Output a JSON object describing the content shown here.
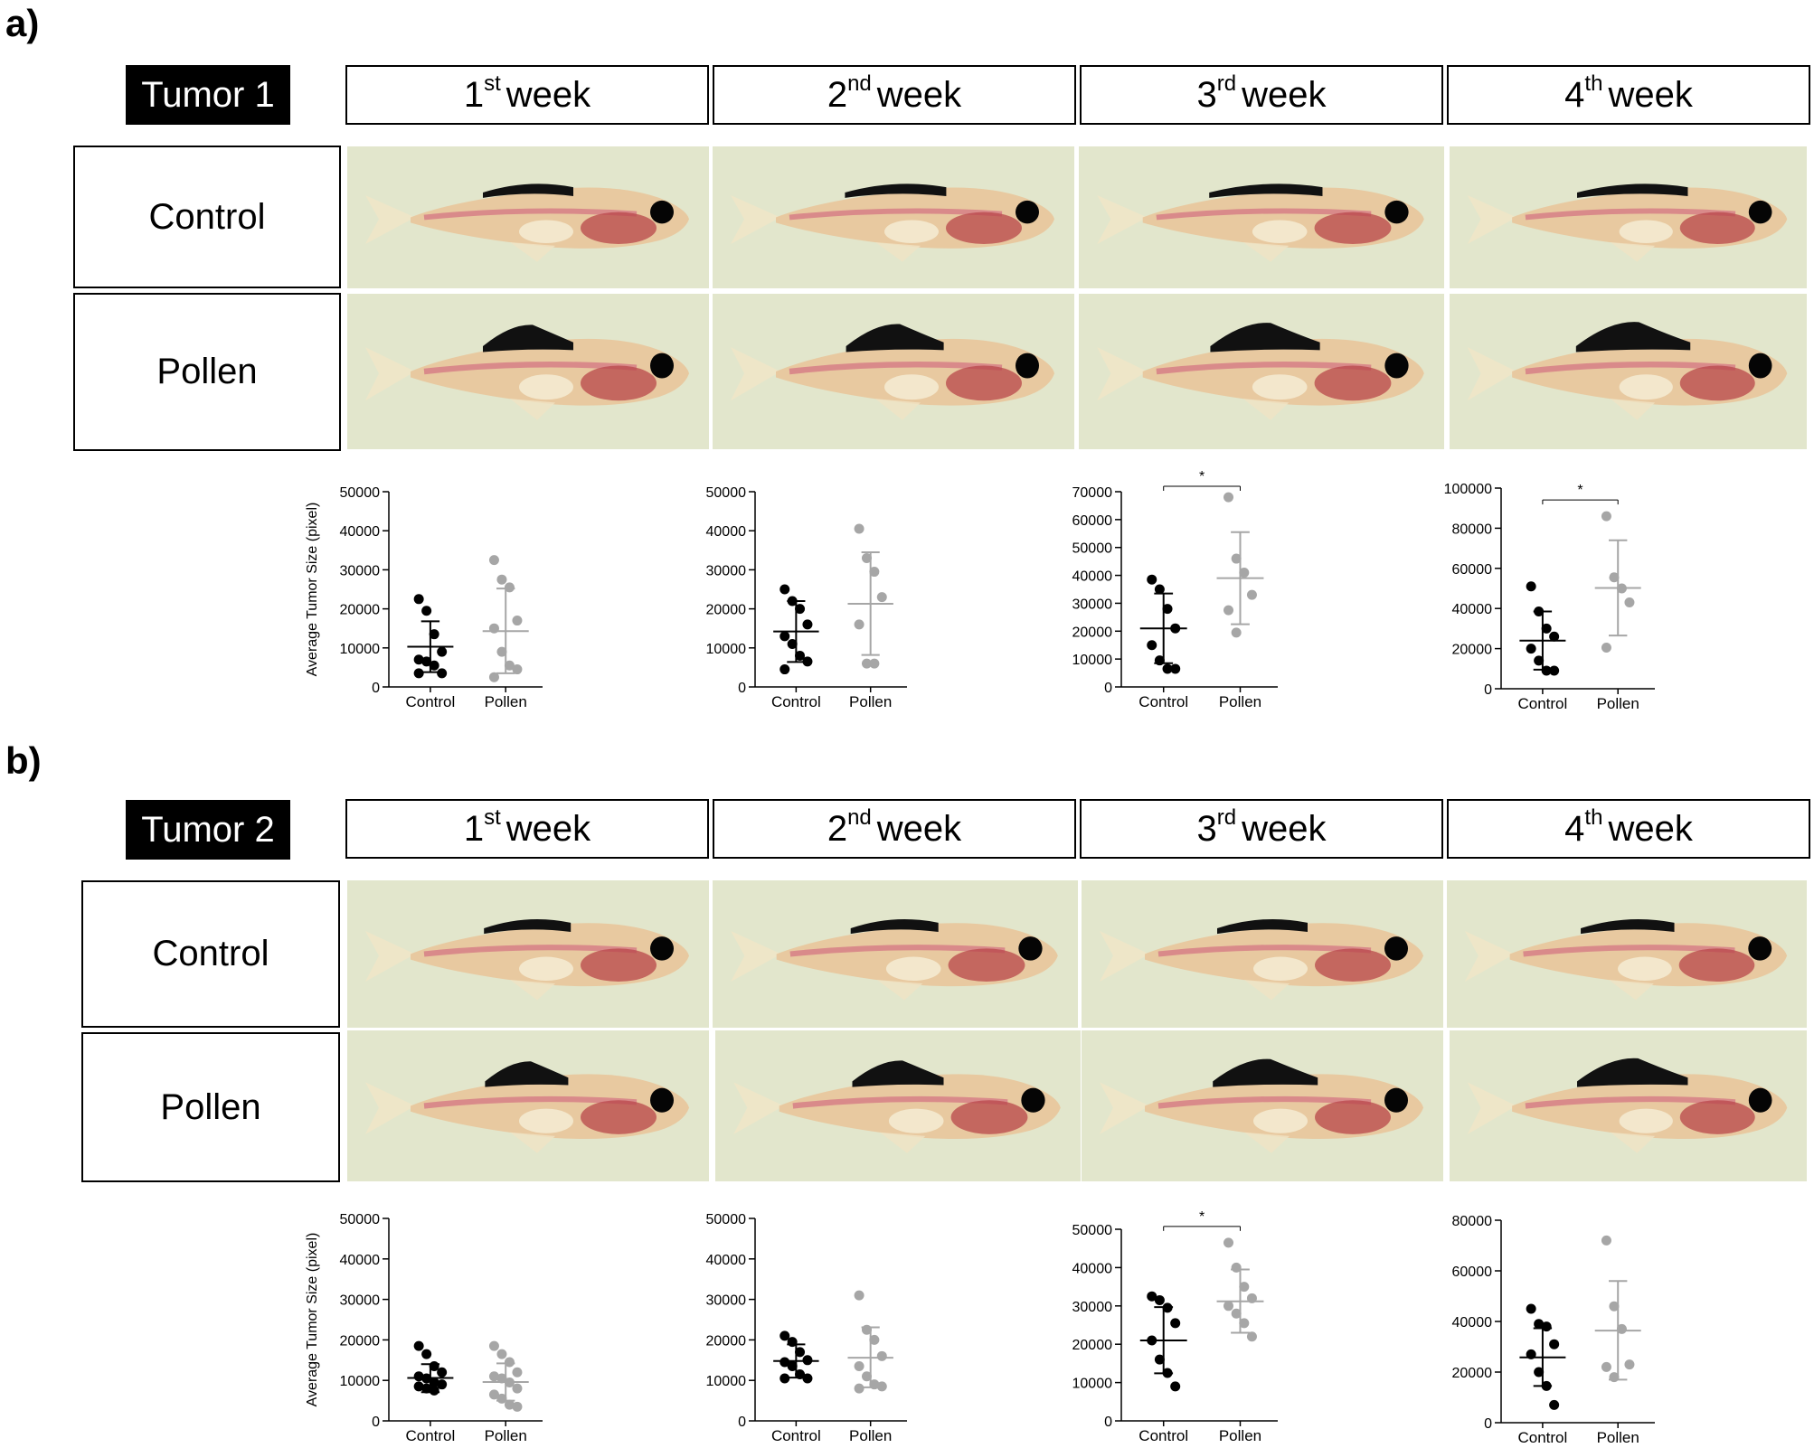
{
  "panels": [
    {
      "letter": "a)",
      "tumor": "Tumor 1",
      "weeks": [
        {
          "num": "1",
          "sup": "st",
          "text": "week"
        },
        {
          "num": "2",
          "sup": "nd",
          "text": "week"
        },
        {
          "num": "3",
          "sup": "rd",
          "text": "week"
        },
        {
          "num": "4",
          "sup": "th",
          "text": "week"
        }
      ],
      "rows": [
        "Control",
        "Pollen"
      ]
    },
    {
      "letter": "b)",
      "tumor": "Tumor 2",
      "weeks": [
        {
          "num": "1",
          "sup": "st",
          "text": "week"
        },
        {
          "num": "2",
          "sup": "nd",
          "text": "week"
        },
        {
          "num": "3",
          "sup": "rd",
          "text": "week"
        },
        {
          "num": "4",
          "sup": "th",
          "text": "week"
        }
      ],
      "rows": [
        "Control",
        "Pollen"
      ]
    }
  ],
  "colors": {
    "control": "#000000",
    "pollen": "#a6a6a6",
    "photo_bg": "#e2e6cc",
    "tumor": "#111111"
  },
  "chart_data": [
    {
      "type": "scatter",
      "categories": [
        "Control",
        "Pollen"
      ],
      "ylabel": "Average Tumor Size (pixel)",
      "ylim": [
        0,
        50000
      ],
      "yticks": [
        "0",
        "10000",
        "20000",
        "30000",
        "40000",
        "50000"
      ],
      "series": [
        {
          "values": [
            22500,
            19500,
            13500,
            9000,
            7000,
            6500,
            5500,
            3500,
            3500
          ],
          "mean": 10300,
          "sd_low": 3800,
          "sd_high": 16800
        },
        {
          "values": [
            32500,
            27500,
            25500,
            17000,
            15000,
            9000,
            5500,
            4500,
            2500
          ],
          "mean": 14300,
          "sd_low": 3500,
          "sd_high": 25200
        }
      ],
      "significance": ""
    },
    {
      "type": "scatter",
      "categories": [
        "Control",
        "Pollen"
      ],
      "ylabel": "",
      "ylim": [
        0,
        50000
      ],
      "yticks": [
        "0",
        "10000",
        "20000",
        "30000",
        "40000",
        "50000"
      ],
      "series": [
        {
          "values": [
            25000,
            22000,
            20000,
            16000,
            13000,
            11000,
            8000,
            6500,
            4500
          ],
          "mean": 14200,
          "sd_low": 6400,
          "sd_high": 22000
        },
        {
          "values": [
            40500,
            33000,
            29500,
            23000,
            16000,
            6000,
            6000
          ],
          "mean": 21300,
          "sd_low": 8200,
          "sd_high": 34500
        }
      ],
      "significance": ""
    },
    {
      "type": "scatter",
      "categories": [
        "Control",
        "Pollen"
      ],
      "ylabel": "",
      "ylim": [
        0,
        70000
      ],
      "yticks": [
        "0",
        "10000",
        "20000",
        "30000",
        "40000",
        "50000",
        "60000",
        "70000"
      ],
      "series": [
        {
          "values": [
            38500,
            35000,
            28000,
            21000,
            15000,
            9500,
            6500,
            6500
          ],
          "mean": 21000,
          "sd_low": 8500,
          "sd_high": 33500
        },
        {
          "values": [
            68000,
            46000,
            41000,
            33000,
            27500,
            19500
          ],
          "mean": 39000,
          "sd_low": 22500,
          "sd_high": 55500
        }
      ],
      "significance": "*"
    },
    {
      "type": "scatter",
      "categories": [
        "Control",
        "Pollen"
      ],
      "ylabel": "",
      "ylim": [
        0,
        100000
      ],
      "yticks": [
        "0",
        "20000",
        "40000",
        "60000",
        "80000",
        "100000"
      ],
      "series": [
        {
          "values": [
            51000,
            38500,
            30000,
            26000,
            20000,
            14000,
            9000,
            9000
          ],
          "mean": 24000,
          "sd_low": 9500,
          "sd_high": 38500
        },
        {
          "values": [
            86000,
            55500,
            50000,
            43000,
            20500
          ],
          "mean": 50200,
          "sd_low": 26500,
          "sd_high": 74000
        }
      ],
      "significance": "*"
    },
    {
      "type": "scatter",
      "categories": [
        "Control",
        "Pollen"
      ],
      "ylabel": "Average Tumor Size (pixel)",
      "ylim": [
        0,
        50000
      ],
      "yticks": [
        "0",
        "10000",
        "20000",
        "30000",
        "40000",
        "50000"
      ],
      "series": [
        {
          "values": [
            18500,
            16500,
            13500,
            12000,
            11000,
            10500,
            9500,
            9000,
            8500,
            8000,
            7500
          ],
          "mean": 10600,
          "sd_low": 7100,
          "sd_high": 14000
        },
        {
          "values": [
            18500,
            16500,
            14500,
            12000,
            11000,
            10500,
            9500,
            8000,
            6500,
            5500,
            4000,
            3500
          ],
          "mean": 9600,
          "sd_low": 5000,
          "sd_high": 14200
        }
      ],
      "significance": ""
    },
    {
      "type": "scatter",
      "categories": [
        "Control",
        "Pollen"
      ],
      "ylabel": "",
      "ylim": [
        0,
        50000
      ],
      "yticks": [
        "0",
        "10000",
        "20000",
        "30000",
        "40000",
        "50000"
      ],
      "series": [
        {
          "values": [
            21000,
            19500,
            17000,
            15000,
            14500,
            13500,
            11500,
            10500,
            10500
          ],
          "mean": 14800,
          "sd_low": 10700,
          "sd_high": 18900
        },
        {
          "values": [
            31000,
            22500,
            20000,
            16000,
            13500,
            11000,
            9000,
            8500,
            8000
          ],
          "mean": 15600,
          "sd_low": 8300,
          "sd_high": 23100
        }
      ],
      "significance": ""
    },
    {
      "type": "scatter",
      "categories": [
        "Control",
        "Pollen"
      ],
      "ylabel": "",
      "ylim": [
        0,
        50000
      ],
      "yticks": [
        "0",
        "10000",
        "20000",
        "30000",
        "40000",
        "50000"
      ],
      "series": [
        {
          "values": [
            32500,
            31500,
            29500,
            25500,
            21000,
            16000,
            12500,
            9000
          ],
          "mean": 21000,
          "sd_low": 12400,
          "sd_high": 29700
        },
        {
          "values": [
            46500,
            40000,
            35000,
            32000,
            30000,
            28000,
            25500,
            22000
          ],
          "mean": 31200,
          "sd_low": 23000,
          "sd_high": 39500
        }
      ],
      "significance": "*"
    },
    {
      "type": "scatter",
      "categories": [
        "Control",
        "Pollen"
      ],
      "ylabel": "",
      "ylim": [
        0,
        80000
      ],
      "yticks": [
        "0",
        "20000",
        "40000",
        "60000",
        "80000"
      ],
      "series": [
        {
          "values": [
            45000,
            39000,
            38000,
            31000,
            27000,
            20000,
            14500,
            7000
          ],
          "mean": 25800,
          "sd_low": 14500,
          "sd_high": 37300
        },
        {
          "values": [
            72000,
            46000,
            37000,
            23000,
            22000,
            18000
          ],
          "mean": 36400,
          "sd_low": 17000,
          "sd_high": 56000
        }
      ],
      "significance": ""
    }
  ]
}
